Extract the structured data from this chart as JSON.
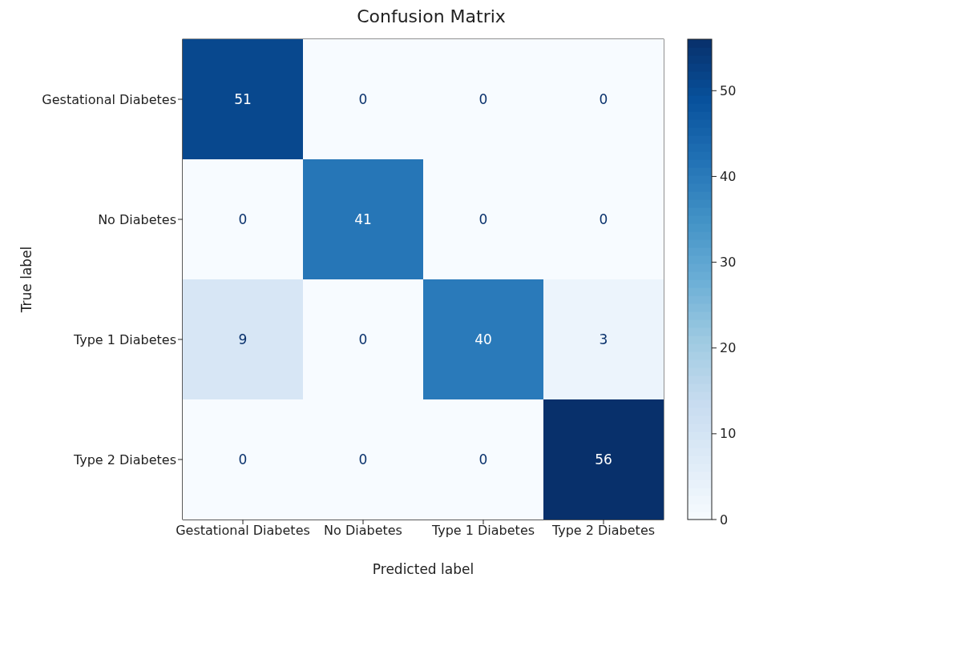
{
  "chart_data": {
    "type": "heatmap",
    "title": "Confusion Matrix",
    "xlabel": "Predicted label",
    "ylabel": "True label",
    "categories": [
      "Gestational Diabetes",
      "No Diabetes",
      "Type 1 Diabetes",
      "Type 2 Diabetes"
    ],
    "y_categories": [
      "Gestational Diabetes",
      "No Diabetes",
      "Type 1 Diabetes",
      "Type 2 Diabetes"
    ],
    "cells": [
      [
        51,
        0,
        0,
        0
      ],
      [
        0,
        41,
        0,
        0
      ],
      [
        9,
        0,
        40,
        3
      ],
      [
        0,
        0,
        0,
        56
      ]
    ],
    "clim": [
      0,
      56
    ],
    "cticks": [
      0,
      10,
      20,
      30,
      40,
      50
    ],
    "data_labels": true
  }
}
